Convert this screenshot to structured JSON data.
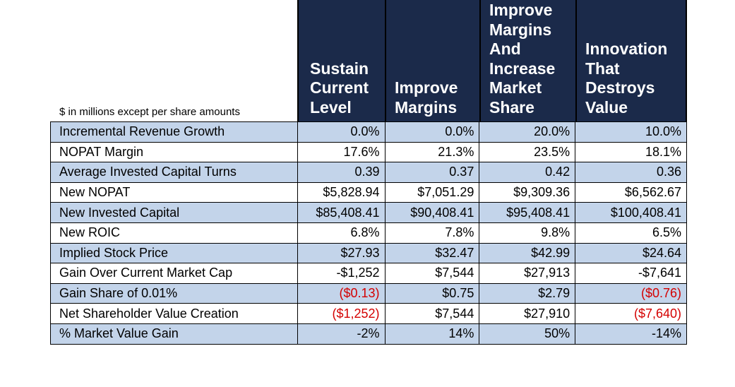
{
  "note": "$ in millions except per share amounts",
  "columns": [
    [
      "Sustain",
      "Current",
      "Level"
    ],
    [
      "Improve",
      "Margins"
    ],
    [
      "Improve",
      "Margins",
      "And",
      "Increase",
      "Market",
      "Share"
    ],
    [
      "Innovation",
      "That",
      "Destroys",
      "Value"
    ]
  ],
  "rows": [
    {
      "label": "Incremental Revenue Growth",
      "values": [
        "0.0%",
        "0.0%",
        "20.0%",
        "10.0%"
      ]
    },
    {
      "label": "NOPAT Margin",
      "values": [
        "17.6%",
        "21.3%",
        "23.5%",
        "18.1%"
      ]
    },
    {
      "label": "Average Invested Capital Turns",
      "values": [
        "0.39",
        "0.37",
        "0.42",
        "0.36"
      ]
    },
    {
      "label": "New NOPAT",
      "values": [
        "$5,828.94",
        "$7,051.29",
        "$9,309.36",
        "$6,562.67"
      ]
    },
    {
      "label": "New Invested Capital",
      "values": [
        "$85,408.41",
        "$90,408.41",
        "$95,408.41",
        "$100,408.41"
      ]
    },
    {
      "label": "New ROIC",
      "values": [
        "6.8%",
        "7.8%",
        "9.8%",
        "6.5%"
      ]
    },
    {
      "label": "Implied Stock Price",
      "values": [
        "$27.93",
        "$32.47",
        "$42.99",
        "$24.64"
      ]
    },
    {
      "label": "Gain Over Current Market Cap",
      "values": [
        "-$1,252",
        "$7,544",
        "$27,913",
        "-$7,641"
      ]
    },
    {
      "label": "Gain Share of 0.01%",
      "values": [
        "($0.13)",
        "$0.75",
        "$2.79",
        "($0.76)"
      ]
    },
    {
      "label": "Net Shareholder Value Creation",
      "values": [
        "($1,252)",
        "$7,544",
        "$27,910",
        "($7,640)"
      ]
    },
    {
      "label": "% Market Value Gain",
      "values": [
        "-2%",
        "14%",
        "50%",
        "-14%"
      ]
    }
  ],
  "colors": {
    "header_bg": "#1b2a4a",
    "row_band": "#c3d4ea",
    "negative": "#d40000"
  }
}
